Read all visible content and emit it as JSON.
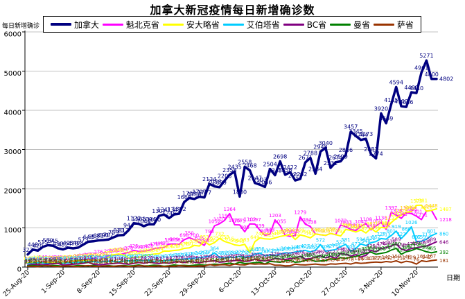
{
  "title": "加拿大新冠疫情每日新增确诊数",
  "chart_data": {
    "type": "line",
    "title": "加拿大新冠疫情每日新增确诊数",
    "xlabel": "日期",
    "ylabel": "每日新增确诊",
    "ylim": [
      0,
      6000
    ],
    "y_ticks": [
      0,
      1000,
      2000,
      3000,
      4000,
      5000,
      6000
    ],
    "grid": true,
    "legend_position": "top",
    "x_tick_interval": 7,
    "x_tick_labels": [
      "25-Aug-20",
      "1-Sep-20",
      "8-Sep-20",
      "15-Sep-20",
      "22-Sep-20",
      "29-Sep-20",
      "6-Oct-20",
      "13-Oct-20",
      "20-Oct-20",
      "27-Oct-20",
      "3-Nov-20",
      "10-Nov-20"
    ],
    "series": [
      {
        "id": "canada",
        "name": "加拿大",
        "color": "#000080",
        "width": 3.5,
        "values": [
          322,
          448,
          420,
          515,
          559,
          545,
          480,
          452,
          495,
          478,
          498,
          573,
          648,
          658,
          681,
          690,
          702,
          759,
          810,
          817,
          944,
          1120,
          1103,
          1044,
          1094,
          1090,
          1307,
          1341,
          1248,
          1343,
          1362,
          1660,
          1763,
          1738,
          1797,
          1777,
          2124,
          2058,
          2039,
          2206,
          2358,
          2435,
          1800,
          2558,
          2468,
          2147,
          2103,
          2046,
          2504,
          2345,
          2698,
          2356,
          2422,
          2211,
          2252,
          2671,
          2788,
          2384,
          2948,
          3040,
          2531,
          2674,
          2699,
          2866,
          3457,
          3345,
          3244,
          3273,
          2883,
          2774,
          3920,
          3669,
          4145,
          4594,
          4102,
          4086,
          4460,
          4440,
          4961,
          5271,
          4800,
          4802
        ]
      },
      {
        "id": "quebec",
        "name": "魁北克省",
        "color": "#FF00FF",
        "width": 2,
        "values": [
          88,
          94,
          106,
          140,
          127,
          133,
          141,
          121,
          132,
          146,
          180,
          187,
          205,
          216,
          276,
          231,
          292,
          303,
          315,
          342,
          376,
          425,
          399,
          407,
          428,
          471,
          489,
          499,
          586,
          589,
          582,
          698,
          750,
          700,
          625,
          554,
          793,
          1052,
          1107,
          1191,
          1364,
          1079,
          1075,
          900,
          1102,
          1097,
          939,
          809,
          843,
          1203,
          1055,
          815,
          783,
          805,
          1279,
          1094,
          1038,
          844,
          825,
          808,
          858,
          827,
          1072,
          1033,
          963,
          934,
          1042,
          1108,
          948,
          1050,
          1138,
          962,
          1397,
          1328,
          1243,
          1388,
          1365,
          1301,
          1211,
          1426,
          1448,
          1218
        ]
      },
      {
        "id": "ontario",
        "name": "安大略省",
        "color": "#FFFF00",
        "width": 2,
        "values": [
          105,
          118,
          131,
          112,
          122,
          114,
          126,
          133,
          146,
          149,
          170,
          169,
          185,
          183,
          190,
          213,
          251,
          315,
          335,
          313,
          232,
          251,
          246,
          293,
          313,
          331,
          344,
          409,
          407,
          425,
          435,
          478,
          491,
          554,
          538,
          653,
          566,
          625,
          732,
          653,
          615,
          566,
          548,
          583,
          364,
          649,
          746,
          721,
          712,
          746,
          783,
          805,
          834,
          704,
          821,
          790,
          746,
          844,
          825,
          808,
          858,
          827,
          793,
          963,
          934,
          896,
          948,
          871,
          987,
          896,
          1015,
          998,
          1132,
          1242,
          1328,
          1396,
          1417,
          1575,
          1581,
          1426,
          1448,
          1487
        ]
      },
      {
        "id": "alberta",
        "name": "艾伯塔省",
        "color": "#00CCFF",
        "width": 2,
        "values": [
          84,
          96,
          110,
          102,
          93,
          88,
          105,
          98,
          114,
          108,
          120,
          131,
          146,
          138,
          125,
          142,
          153,
          147,
          139,
          150,
          164,
          158,
          171,
          165,
          177,
          146,
          152,
          161,
          174,
          183,
          195,
          206,
          218,
          231,
          246,
          259,
          277,
          364,
          246,
          235,
          259,
          246,
          277,
          252,
          272,
          332,
          356,
          287,
          312,
          297,
          332,
          364,
          356,
          386,
          406,
          427,
          386,
          432,
          572,
          406,
          427,
          448,
          522,
          581,
          406,
          477,
          594,
          548,
          622,
          652,
          727,
          713,
          801,
          919,
          727,
          860,
          1026,
          652,
          659,
          713,
          801,
          860
        ]
      },
      {
        "id": "bc",
        "name": "BC省",
        "color": "#800080",
        "width": 2,
        "values": [
          46,
          68,
          62,
          58,
          71,
          86,
          94,
          52,
          66,
          73,
          81,
          98,
          121,
          76,
          58,
          68,
          82,
          91,
          104,
          86,
          73,
          96,
          117,
          98,
          125,
          106,
          91,
          112,
          98,
          125,
          134,
          117,
          148,
          125,
          106,
          139,
          148,
          161,
          125,
          134,
          155,
          167,
          179,
          146,
          158,
          203,
          167,
          155,
          179,
          223,
          203,
          194,
          217,
          234,
          274,
          203,
          217,
          254,
          287,
          238,
          272,
          223,
          346,
          325,
          279,
          317,
          254,
          299,
          425,
          389,
          474,
          494,
          538,
          589,
          459,
          425,
          474,
          494,
          516,
          538,
          589,
          646
        ]
      },
      {
        "id": "manitoba",
        "name": "曼省",
        "color": "#008000",
        "width": 2,
        "values": [
          31,
          42,
          25,
          38,
          29,
          44,
          36,
          21,
          33,
          27,
          40,
          35,
          26,
          44,
          19,
          28,
          37,
          24,
          32,
          41,
          26,
          36,
          54,
          28,
          34,
          47,
          39,
          21,
          33,
          54,
          40,
          44,
          36,
          50,
          62,
          47,
          58,
          74,
          66,
          83,
          97,
          78,
          124,
          90,
          97,
          113,
          124,
          80,
          146,
          135,
          124,
          158,
          169,
          124,
          135,
          173,
          193,
          146,
          158,
          169,
          208,
          193,
          243,
          221,
          253,
          271,
          313,
          353,
          383,
          327,
          351,
          374,
          431,
          480,
          327,
          392,
          421,
          474,
          438,
          392,
          365,
          392
        ]
      },
      {
        "id": "saskatchewan",
        "name": "萨省",
        "color": "#993300",
        "width": 2,
        "values": [
          17,
          23,
          11,
          29,
          35,
          20,
          14,
          25,
          31,
          19,
          13,
          27,
          38,
          22,
          16,
          30,
          24,
          18,
          33,
          26,
          12,
          21,
          35,
          28,
          17,
          23,
          31,
          14,
          26,
          19,
          36,
          29,
          23,
          17,
          30,
          25,
          66,
          43,
          57,
          62,
          43,
          78,
          60,
          54,
          86,
          76,
          82,
          76,
          87,
          47,
          48,
          31,
          35,
          76,
          60,
          54,
          66,
          78,
          62,
          57,
          82,
          74,
          89,
          97,
          78,
          112,
          96,
          104,
          119,
          127,
          119,
          142,
          127,
          159,
          112,
          148,
          129,
          76,
          161,
          142,
          167,
          181
        ]
      }
    ]
  }
}
